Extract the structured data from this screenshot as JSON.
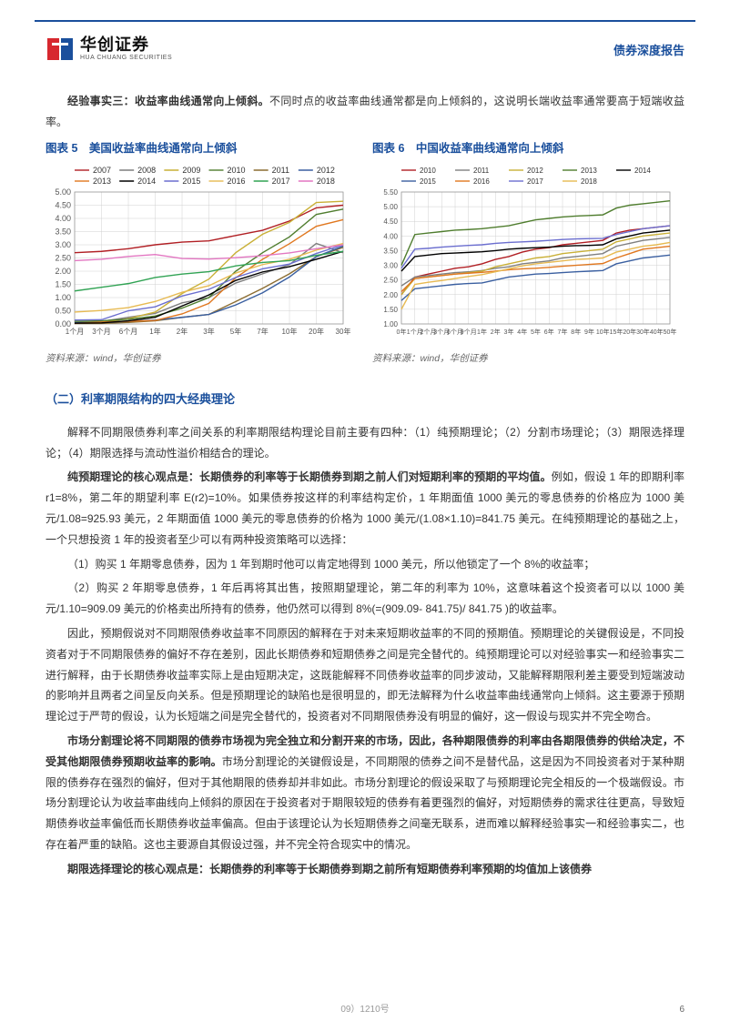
{
  "header": {
    "logo_cn": "华创证券",
    "logo_en": "HUA CHUANG SECURITIES",
    "logo_colors": {
      "red": "#d7282f",
      "blue": "#1a4f9c"
    },
    "doc_type": "债券深度报告"
  },
  "intro": {
    "lead": "经验事实三：收益率曲线通常向上倾斜。",
    "body": "不同时点的收益率曲线通常都是向上倾斜的，这说明长端收益率通常要高于短端收益率。"
  },
  "chart5": {
    "type": "line",
    "title": "图表 5　美国收益率曲线通常向上倾斜",
    "source": "资料来源：wind，华创证券",
    "x_categories": [
      "1个月",
      "3个月",
      "6个月",
      "1年",
      "2年",
      "3年",
      "5年",
      "7年",
      "10年",
      "20年",
      "30年"
    ],
    "ylim": [
      0,
      5.0
    ],
    "ytick_step": 0.5,
    "label_fontsize": 9,
    "grid_color": "#d0d0d0",
    "background_color": "#ffffff",
    "axis_color": "#999999",
    "line_width": 1.4,
    "series": [
      {
        "name": "2007",
        "color": "#b11f24",
        "values": [
          2.7,
          2.75,
          2.85,
          3.0,
          3.1,
          3.15,
          3.35,
          3.55,
          3.9,
          4.4,
          4.5
        ]
      },
      {
        "name": "2008",
        "color": "#7f7f7f",
        "values": [
          0.05,
          0.1,
          0.25,
          0.4,
          0.8,
          1.0,
          1.55,
          1.9,
          2.25,
          3.05,
          2.7
        ]
      },
      {
        "name": "2009",
        "color": "#c9b037",
        "values": [
          0.05,
          0.06,
          0.2,
          0.45,
          1.15,
          1.7,
          2.7,
          3.4,
          3.85,
          4.6,
          4.65
        ]
      },
      {
        "name": "2010",
        "color": "#4f7d2e",
        "values": [
          0.1,
          0.12,
          0.18,
          0.3,
          0.6,
          1.0,
          2.0,
          2.7,
          3.3,
          4.15,
          4.35
        ]
      },
      {
        "name": "2011",
        "color": "#8c6d31",
        "values": [
          0.02,
          0.02,
          0.06,
          0.12,
          0.25,
          0.36,
          0.85,
          1.35,
          1.9,
          2.55,
          2.9
        ]
      },
      {
        "name": "2012",
        "color": "#3a5fa0",
        "values": [
          0.05,
          0.05,
          0.1,
          0.15,
          0.25,
          0.36,
          0.72,
          1.18,
          1.78,
          2.55,
          2.95
        ]
      },
      {
        "name": "2013",
        "color": "#e0771f",
        "values": [
          0.02,
          0.07,
          0.1,
          0.13,
          0.38,
          0.78,
          1.75,
          2.45,
          3.04,
          3.7,
          3.95
        ]
      },
      {
        "name": "2014",
        "color": "#000000",
        "values": [
          0.03,
          0.04,
          0.12,
          0.25,
          0.68,
          1.1,
          1.65,
          1.97,
          2.17,
          2.45,
          2.75
        ]
      },
      {
        "name": "2015",
        "color": "#6b6ecf",
        "values": [
          0.15,
          0.16,
          0.5,
          0.65,
          1.06,
          1.31,
          1.76,
          2.09,
          2.27,
          2.67,
          3.0
        ]
      },
      {
        "name": "2016",
        "color": "#e7ba52",
        "values": [
          0.45,
          0.51,
          0.62,
          0.85,
          1.2,
          1.45,
          1.93,
          2.25,
          2.45,
          2.8,
          3.05
        ]
      },
      {
        "name": "2017",
        "color": "#31a354",
        "values": [
          1.25,
          1.39,
          1.53,
          1.76,
          1.89,
          1.98,
          2.2,
          2.33,
          2.4,
          2.6,
          2.75
        ]
      },
      {
        "name": "2018",
        "color": "#e377c2",
        "values": [
          2.4,
          2.45,
          2.56,
          2.63,
          2.48,
          2.46,
          2.51,
          2.59,
          2.69,
          2.85,
          3.0
        ]
      }
    ]
  },
  "chart6": {
    "type": "line",
    "title": "图表 6　中国收益率曲线通常向上倾斜",
    "source": "资料来源：wind，华创证券",
    "x_categories": [
      "0年",
      "1个月",
      "2个月",
      "3个月",
      "6个月",
      "9个月",
      "1年",
      "2年",
      "3年",
      "4年",
      "5年",
      "6年",
      "7年",
      "8年",
      "9年",
      "10年",
      "15年",
      "20年",
      "30年",
      "40年",
      "50年"
    ],
    "ylim": [
      1.0,
      5.5
    ],
    "ytick_step": 0.5,
    "label_fontsize": 8,
    "grid_color": "#d0d0d0",
    "background_color": "#ffffff",
    "axis_color": "#999999",
    "line_width": 1.4,
    "series": [
      {
        "name": "2010",
        "color": "#b11f24",
        "values": [
          2.0,
          2.6,
          2.7,
          2.8,
          2.9,
          2.95,
          3.05,
          3.2,
          3.3,
          3.45,
          3.55,
          3.6,
          3.7,
          3.75,
          3.8,
          3.85,
          4.1,
          4.2,
          4.25,
          4.3,
          4.35
        ]
      },
      {
        "name": "2011",
        "color": "#7f7f7f",
        "values": [
          2.3,
          2.6,
          2.65,
          2.7,
          2.75,
          2.78,
          2.82,
          2.9,
          2.95,
          3.05,
          3.1,
          3.15,
          3.25,
          3.3,
          3.35,
          3.4,
          3.65,
          3.75,
          3.85,
          3.9,
          3.95
        ]
      },
      {
        "name": "2012",
        "color": "#c9b037",
        "values": [
          2.0,
          2.55,
          2.6,
          2.65,
          2.7,
          2.75,
          2.8,
          2.95,
          3.05,
          3.15,
          3.25,
          3.3,
          3.4,
          3.45,
          3.5,
          3.55,
          3.8,
          3.9,
          4.0,
          4.05,
          4.1
        ]
      },
      {
        "name": "2013",
        "color": "#4f7d2e",
        "values": [
          3.0,
          4.05,
          4.1,
          4.15,
          4.2,
          4.22,
          4.25,
          4.3,
          4.35,
          4.45,
          4.55,
          4.6,
          4.65,
          4.68,
          4.7,
          4.72,
          4.95,
          5.05,
          5.1,
          5.15,
          5.2
        ]
      },
      {
        "name": "2014",
        "color": "#000000",
        "values": [
          2.8,
          3.3,
          3.35,
          3.4,
          3.42,
          3.44,
          3.46,
          3.5,
          3.55,
          3.58,
          3.6,
          3.62,
          3.65,
          3.67,
          3.68,
          3.7,
          3.9,
          4.0,
          4.1,
          4.15,
          4.2
        ]
      },
      {
        "name": "2015",
        "color": "#3a5fa0",
        "values": [
          1.8,
          2.2,
          2.25,
          2.3,
          2.35,
          2.38,
          2.4,
          2.5,
          2.6,
          2.65,
          2.7,
          2.72,
          2.75,
          2.78,
          2.8,
          2.82,
          3.05,
          3.15,
          3.25,
          3.3,
          3.35
        ]
      },
      {
        "name": "2016",
        "color": "#e0771f",
        "values": [
          2.1,
          2.55,
          2.6,
          2.65,
          2.7,
          2.73,
          2.76,
          2.8,
          2.85,
          2.88,
          2.9,
          2.93,
          2.97,
          3.0,
          3.03,
          3.06,
          3.25,
          3.4,
          3.55,
          3.6,
          3.65
        ]
      },
      {
        "name": "2017",
        "color": "#6b6ecf",
        "values": [
          2.9,
          3.55,
          3.58,
          3.62,
          3.65,
          3.68,
          3.7,
          3.75,
          3.78,
          3.8,
          3.82,
          3.85,
          3.88,
          3.9,
          3.91,
          3.92,
          4.05,
          4.15,
          4.25,
          4.3,
          4.35
        ]
      },
      {
        "name": "2018",
        "color": "#e7ba52",
        "values": [
          1.5,
          2.35,
          2.42,
          2.48,
          2.55,
          2.62,
          2.68,
          2.78,
          2.88,
          2.98,
          3.05,
          3.1,
          3.15,
          3.2,
          3.22,
          3.25,
          3.45,
          3.55,
          3.65,
          3.7,
          3.78
        ]
      }
    ]
  },
  "section2": {
    "heading": "（二）利率期限结构的四大经典理论",
    "p1": "解释不同期限债券利率之间关系的利率期限结构理论目前主要有四种：（1）纯预期理论；（2）分割市场理论；（3）期限选择理论；（4）期限选择与流动性溢价相结合的理论。",
    "p2_lead": "纯预期理论的核心观点是：长期债券的利率等于长期债券到期之前人们对短期利率的预期的平均值。",
    "p2_body": "例如，假设 1 年的即期利率 r1=8%，第二年的期望利率 E(r2)=10%。如果债券按这样的利率结构定价，1 年期面值 1000 美元的零息债券的价格应为 1000 美元/1.08=925.93 美元，2 年期面值 1000 美元的零息债券的价格为 1000 美元/(1.08×1.10)=841.75 美元。在纯预期理论的基础之上，一个只想投资 1 年的投资者至少可以有两种投资策略可以选择：",
    "p3": "（1）购买 1 年期零息债券，因为 1 年到期时他可以肯定地得到 1000 美元，所以他锁定了一个 8%的收益率；",
    "p4": "（2）购买 2 年期零息债券，1 年后再将其出售，按照期望理论，第二年的利率为 10%，这意味着这个投资者可以以 1000 美元/1.10=909.09 美元的价格卖出所持有的债券，他仍然可以得到 8%(=(909.09- 841.75)/ 841.75 )的收益率。",
    "p5": "因此，预期假说对不同期限债券收益率不同原因的解释在于对未来短期收益率的不同的预期值。预期理论的关键假设是，不同投资者对于不同期限债券的偏好不存在差别，因此长期债券和短期债券之间是完全替代的。纯预期理论可以对经验事实一和经验事实二进行解释，由于长期债券收益率实际上是由短期决定，这既能解释不同债券收益率的同步波动，又能解释期限利差主要受到短端波动的影响并且两者之间呈反向关系。但是预期理论的缺陷也是很明显的，即无法解释为什么收益率曲线通常向上倾斜。这主要源于预期理论过于严苛的假设，认为长短端之间是完全替代的，投资者对不同期限债券没有明显的偏好，这一假设与现实并不完全吻合。",
    "p6_lead": "市场分割理论将不同期限的债券市场视为完全独立和分割开来的市场，因此，各种期限债券的利率由各期限债券的供给决定，不受其他期限债券预期收益率的影响。",
    "p6_body": "市场分割理论的关键假设是，不同期限的债券之间不是替代品，这是因为不同投资者对于某种期限的债券存在强烈的偏好，但对于其他期限的债券却并非如此。市场分割理论的假设采取了与预期理论完全相反的一个极端假设。市场分割理论认为收益率曲线向上倾斜的原因在于投资者对于期限较短的债券有着更强烈的偏好，对短期债券的需求往往更高，导致短期债券收益率偏低而长期债券收益率偏高。但由于该理论认为长短期债券之间毫无联系，进而难以解释经验事实一和经验事实二，也存在着严重的缺陷。这也主要源自其假设过强，并不完全符合现实中的情况。",
    "p7_lead": "期限选择理论的核心观点是：长期债券的利率等于长期债券到期之前所有短期债券利率预期的均值加上该债券"
  },
  "footer": {
    "center": "09）1210号",
    "page": "6"
  }
}
